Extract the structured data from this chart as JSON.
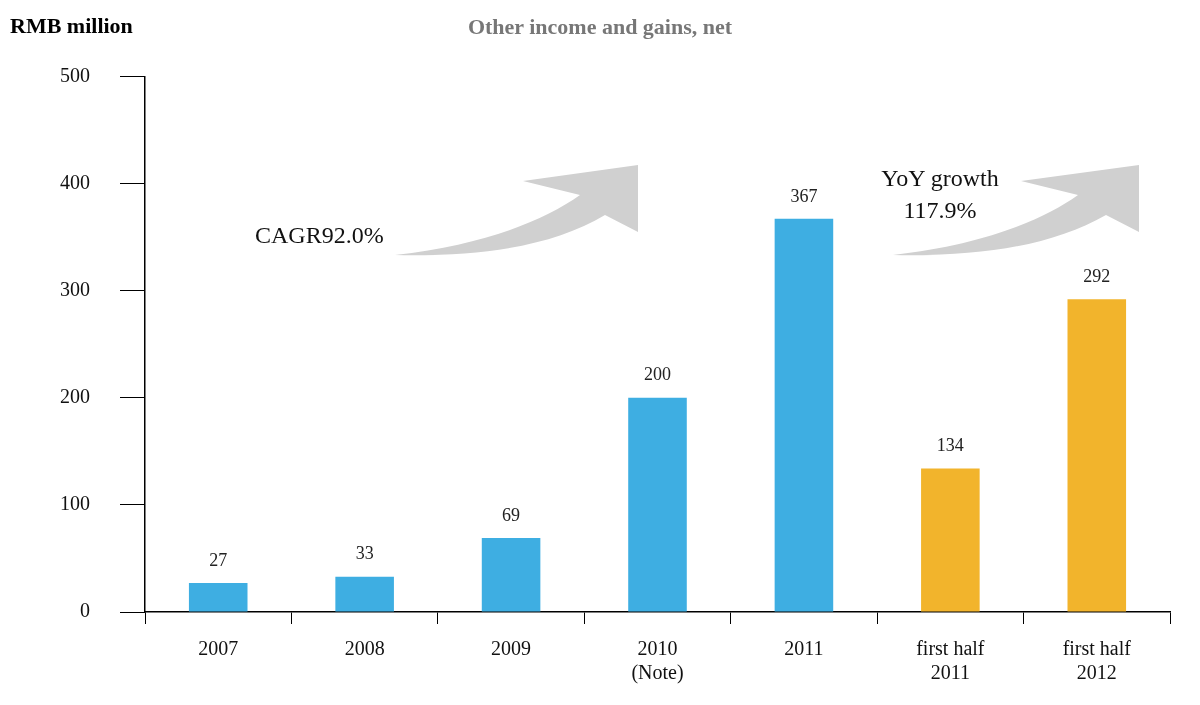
{
  "chart_data": {
    "type": "bar",
    "title": "Other income and gains, net",
    "ylabel": "RMB million",
    "categories": [
      "2007",
      "2008",
      "2009",
      "2010\n(Note)",
      "2011",
      "first half\n2011",
      "first half\n2012"
    ],
    "values": [
      27,
      33,
      69,
      200,
      367,
      134,
      292
    ],
    "colors": [
      "#3eaee2",
      "#3eaee2",
      "#3eaee2",
      "#3eaee2",
      "#3eaee2",
      "#f2b42c",
      "#f2b42c"
    ],
    "ylim": [
      0,
      500
    ],
    "yticks": [
      0,
      100,
      200,
      300,
      400,
      500
    ],
    "grid": false,
    "legend": false,
    "data_labels": true,
    "annotations": [
      "CAGR92.0%",
      "YoY growth\n117.9%"
    ]
  }
}
